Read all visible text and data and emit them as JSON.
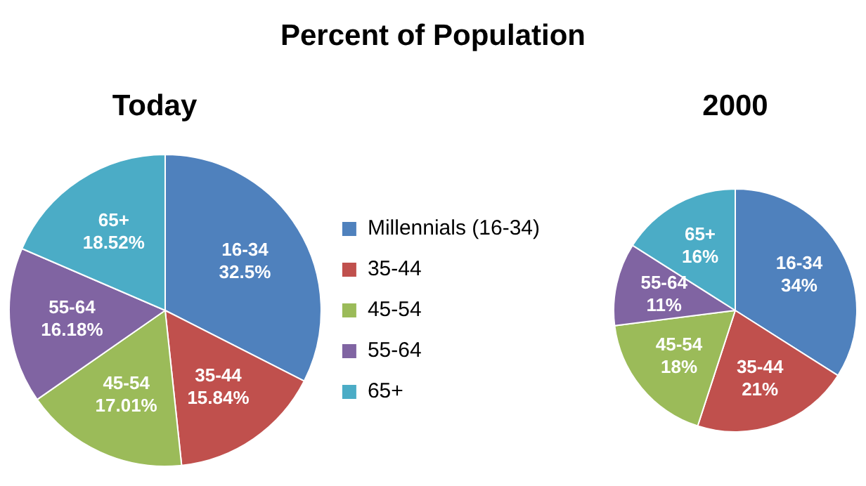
{
  "chart_data": [
    {
      "type": "pie",
      "title": "Today",
      "annotations": [
        "Percent of Population"
      ],
      "categories": [
        "Millennials (16-34)",
        "35-44",
        "45-54",
        "55-64",
        "65+"
      ],
      "values": [
        32.5,
        15.84,
        17.01,
        16.18,
        18.52
      ],
      "colors": [
        "#4f81bd",
        "#c0504d",
        "#9bbb59",
        "#8064a2",
        "#4bacc6"
      ],
      "value_labels": [
        "16-34\n32.5%",
        "35-44\n15.84%",
        "45-54\n17.01%",
        "55-64\n16.18%",
        "65+\n18.52%"
      ],
      "legend": "right"
    },
    {
      "type": "pie",
      "title": "2000",
      "categories": [
        "16-34",
        "35-44",
        "45-54",
        "55-64",
        "65+"
      ],
      "values": [
        34,
        21,
        18,
        11,
        16
      ],
      "colors": [
        "#4f81bd",
        "#c0504d",
        "#9bbb59",
        "#8064a2",
        "#4bacc6"
      ],
      "value_labels": [
        "34%",
        "21%",
        "18%",
        "11%",
        "16%"
      ],
      "legend": false
    }
  ]
}
